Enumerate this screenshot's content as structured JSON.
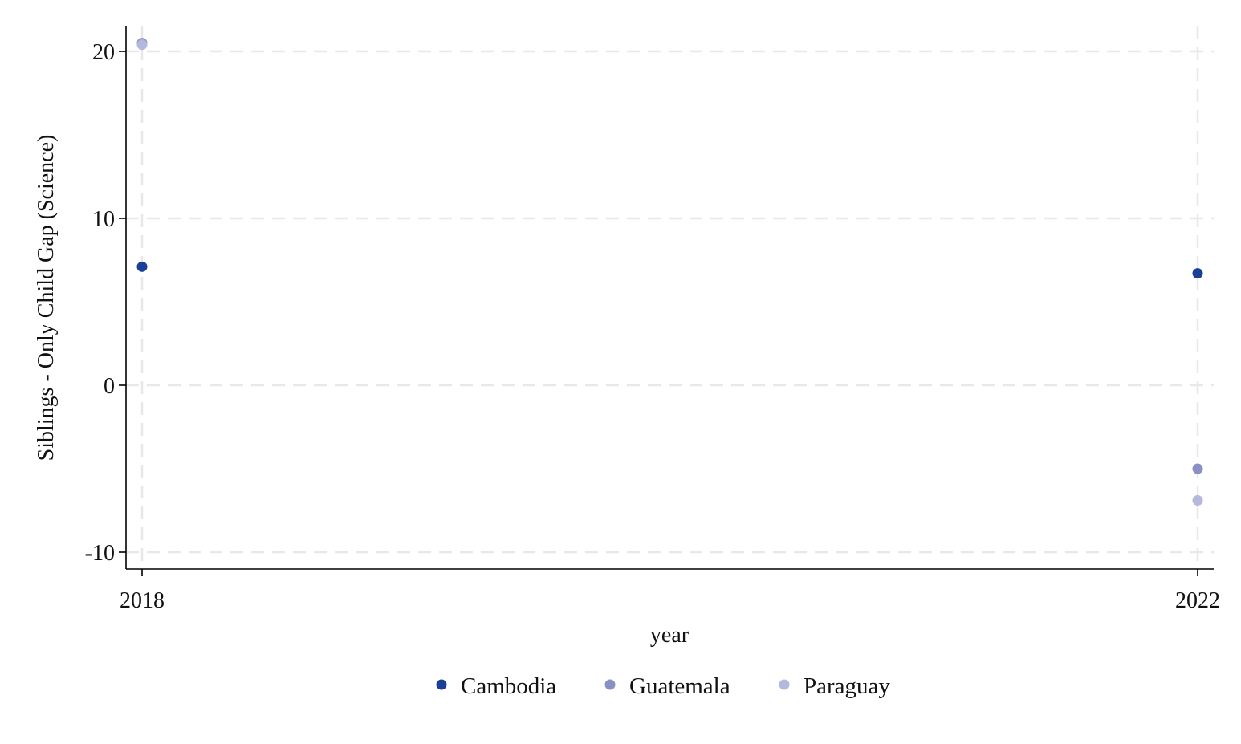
{
  "chart_data": {
    "type": "scatter",
    "title": "",
    "xlabel": "year",
    "ylabel": "Siblings - Only Child Gap (Science)",
    "x_ticks": [
      "2018",
      "2022"
    ],
    "y_ticks": [
      "-10",
      "0",
      "10",
      "20"
    ],
    "xlim": [
      2018,
      2022
    ],
    "ylim": [
      -10,
      20
    ],
    "grid": true,
    "legend_position": "bottom",
    "series": [
      {
        "name": "Cambodia",
        "color": "#1a3f99",
        "points": [
          [
            2018,
            7.1
          ],
          [
            2022,
            6.7
          ]
        ]
      },
      {
        "name": "Guatemala",
        "color": "#8890c4",
        "points": [
          [
            2018,
            20.5
          ],
          [
            2022,
            -5.0
          ]
        ]
      },
      {
        "name": "Paraguay",
        "color": "#b3b8dc",
        "points": [
          [
            2018,
            20.4
          ],
          [
            2022,
            -6.9
          ]
        ]
      }
    ]
  }
}
